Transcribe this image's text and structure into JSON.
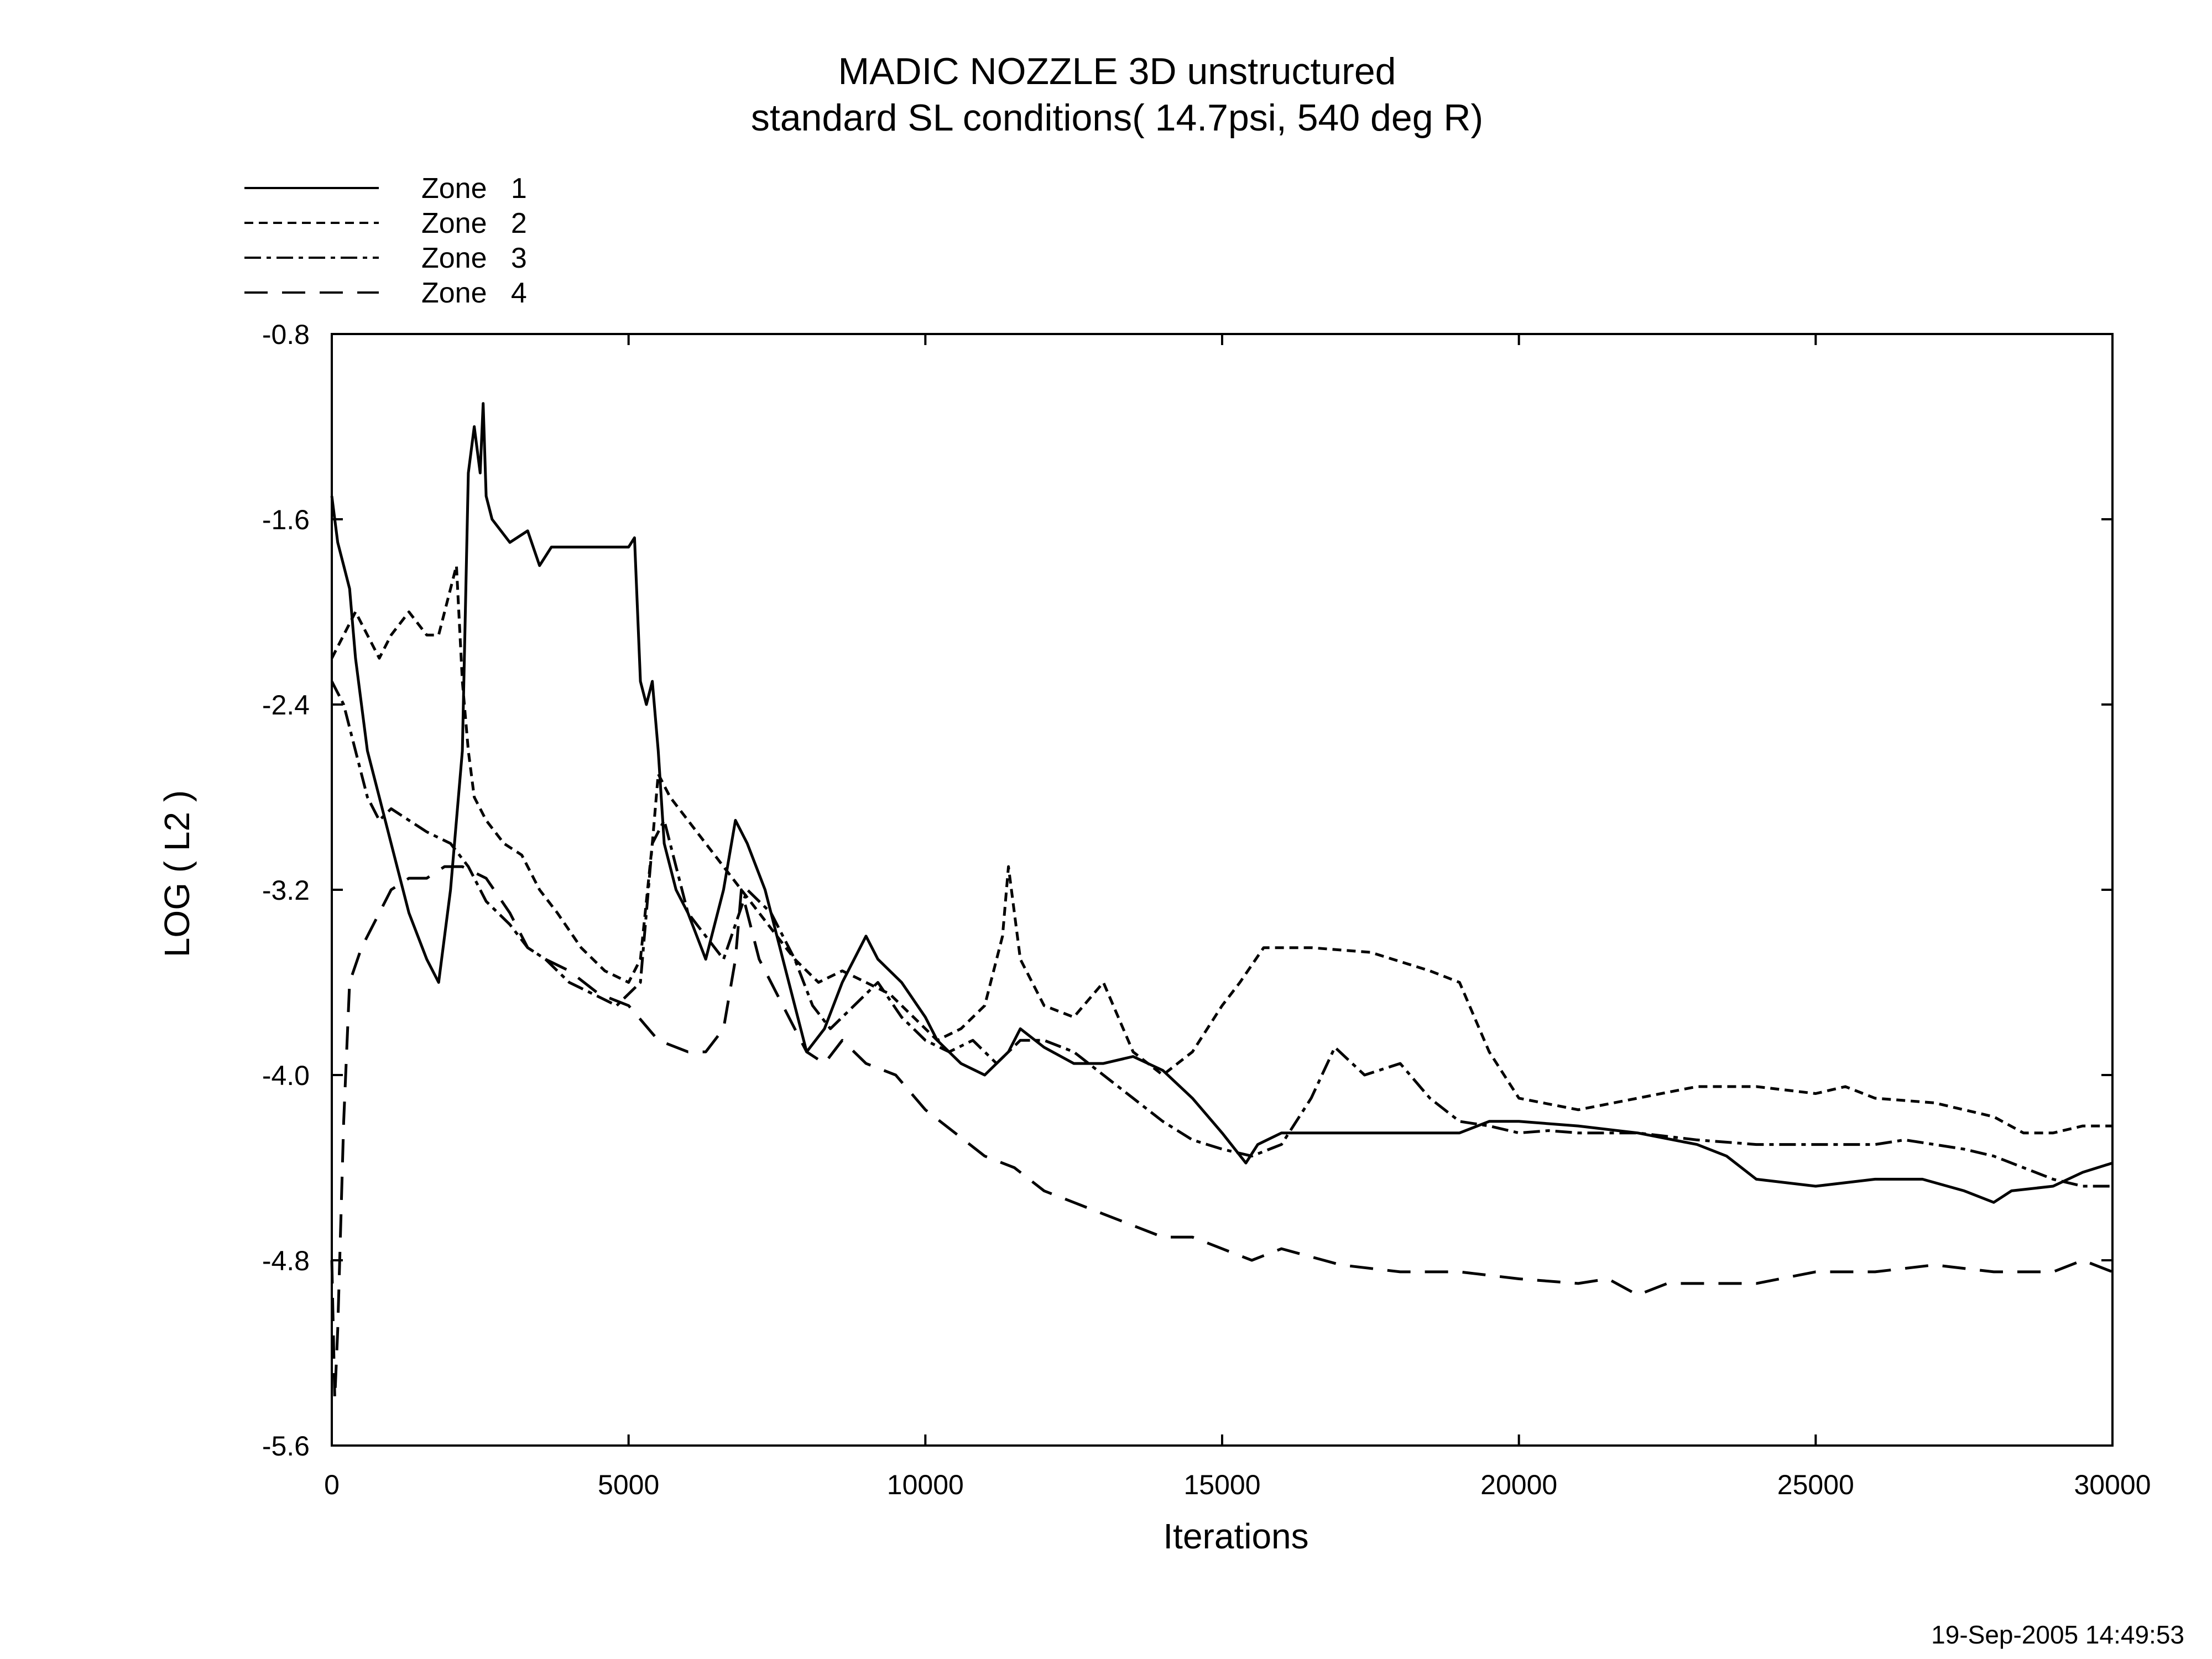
{
  "chart_data": {
    "type": "line",
    "title": "MADIC NOZZLE 3D unstructured",
    "subtitle": "standard SL conditions( 14.7psi, 540 deg R)",
    "xlabel": "Iterations",
    "ylabel": "LOG ( L2 )",
    "xlim": [
      0,
      30000
    ],
    "ylim": [
      -5.6,
      -0.8
    ],
    "xticks": [
      0,
      5000,
      10000,
      15000,
      20000,
      25000,
      30000
    ],
    "yticks": [
      -5.6,
      -4.8,
      -4.0,
      -3.2,
      -2.4,
      -1.6,
      -0.8
    ],
    "xtick_labels": [
      "0",
      "5000",
      "10000",
      "15000",
      "20000",
      "25000",
      "30000"
    ],
    "ytick_labels": [
      "-5.6",
      "-4.8",
      "-4.0",
      "-3.2",
      "-2.4",
      "-1.6",
      "-0.8"
    ],
    "grid": false,
    "legend_position": "top-left (outside plot)",
    "series": [
      {
        "name": "Zone   1",
        "dash": "solid",
        "x": [
          0,
          100,
          200,
          300,
          400,
          600,
          800,
          1000,
          1300,
          1600,
          1800,
          2000,
          2200,
          2300,
          2400,
          2500,
          2550,
          2600,
          2700,
          3000,
          3300,
          3500,
          3700,
          4000,
          4500,
          5000,
          5100,
          5200,
          5300,
          5400,
          5500,
          5600,
          5800,
          6000,
          6300,
          6600,
          6800,
          7000,
          7300,
          7600,
          8000,
          8300,
          8600,
          9000,
          9200,
          9600,
          10000,
          10200,
          10600,
          11000,
          11400,
          11600,
          12000,
          12500,
          13000,
          13500,
          14000,
          14500,
          15000,
          15400,
          15600,
          16000,
          17000,
          18000,
          19000,
          19500,
          20000,
          21000,
          22000,
          23000,
          23500,
          24000,
          25000,
          26000,
          26800,
          27500,
          28000,
          28300,
          29000,
          29500,
          30000
        ],
        "y": [
          -1.5,
          -1.7,
          -1.8,
          -1.9,
          -2.2,
          -2.6,
          -2.8,
          -3.0,
          -3.3,
          -3.5,
          -3.6,
          -3.2,
          -2.6,
          -1.4,
          -1.2,
          -1.4,
          -1.1,
          -1.5,
          -1.6,
          -1.7,
          -1.65,
          -1.8,
          -1.72,
          -1.72,
          -1.72,
          -1.72,
          -1.68,
          -2.3,
          -2.4,
          -2.3,
          -2.6,
          -3.0,
          -3.2,
          -3.3,
          -3.5,
          -3.2,
          -2.9,
          -3.0,
          -3.2,
          -3.5,
          -3.9,
          -3.8,
          -3.6,
          -3.4,
          -3.5,
          -3.6,
          -3.75,
          -3.85,
          -3.95,
          -4.0,
          -3.9,
          -3.8,
          -3.88,
          -3.95,
          -3.95,
          -3.92,
          -3.98,
          -4.1,
          -4.25,
          -4.38,
          -4.3,
          -4.25,
          -4.25,
          -4.25,
          -4.25,
          -4.2,
          -4.2,
          -4.22,
          -4.25,
          -4.3,
          -4.35,
          -4.45,
          -4.48,
          -4.45,
          -4.45,
          -4.5,
          -4.55,
          -4.5,
          -4.48,
          -4.42,
          -4.38
        ]
      },
      {
        "name": "Zone   2",
        "dash": "short-dash",
        "x": [
          0,
          200,
          400,
          600,
          800,
          1000,
          1300,
          1600,
          1800,
          2000,
          2100,
          2200,
          2300,
          2400,
          2600,
          2900,
          3200,
          3500,
          3800,
          4200,
          4600,
          5000,
          5200,
          5400,
          5500,
          5700,
          6000,
          6300,
          6600,
          6900,
          7200,
          7500,
          7800,
          8200,
          8600,
          9000,
          9400,
          9800,
          10200,
          10600,
          11000,
          11300,
          11400,
          11600,
          12000,
          12500,
          13000,
          13500,
          14000,
          14500,
          15000,
          15300,
          15700,
          16500,
          17500,
          18500,
          19000,
          19500,
          20000,
          21000,
          22000,
          23000,
          24000,
          25000,
          25500,
          26000,
          27000,
          28000,
          28500,
          29000,
          29500,
          30000
        ],
        "y": [
          -2.2,
          -2.1,
          -2.0,
          -2.1,
          -2.2,
          -2.1,
          -2.0,
          -2.1,
          -2.1,
          -1.9,
          -1.8,
          -2.3,
          -2.6,
          -2.8,
          -2.9,
          -3.0,
          -3.05,
          -3.2,
          -3.3,
          -3.45,
          -3.55,
          -3.6,
          -3.5,
          -3.0,
          -2.7,
          -2.8,
          -2.9,
          -3.0,
          -3.1,
          -3.2,
          -3.3,
          -3.4,
          -3.5,
          -3.6,
          -3.55,
          -3.6,
          -3.65,
          -3.75,
          -3.85,
          -3.8,
          -3.7,
          -3.4,
          -3.1,
          -3.5,
          -3.7,
          -3.75,
          -3.6,
          -3.9,
          -4.0,
          -3.9,
          -3.7,
          -3.6,
          -3.45,
          -3.45,
          -3.47,
          -3.55,
          -3.6,
          -3.9,
          -4.1,
          -4.15,
          -4.1,
          -4.05,
          -4.05,
          -4.08,
          -4.05,
          -4.1,
          -4.12,
          -4.18,
          -4.25,
          -4.25,
          -4.22,
          -4.22
        ]
      },
      {
        "name": "Zone   3",
        "dash": "dash-dot",
        "x": [
          0,
          200,
          400,
          600,
          800,
          1000,
          1300,
          1600,
          2000,
          2300,
          2600,
          3000,
          3300,
          3600,
          4000,
          4400,
          4800,
          5200,
          5400,
          5600,
          5800,
          6000,
          6300,
          6600,
          7000,
          7400,
          7800,
          8100,
          8400,
          8800,
          9200,
          9600,
          10000,
          10400,
          10800,
          11200,
          11600,
          12000,
          12500,
          13000,
          13500,
          14000,
          14500,
          15000,
          15500,
          16000,
          16500,
          16900,
          17400,
          18000,
          18500,
          19000,
          19500,
          20000,
          20500,
          21000,
          22000,
          23000,
          24000,
          25000,
          26000,
          26500,
          27000,
          27500,
          28000,
          28500,
          29000,
          29500,
          30000
        ],
        "y": [
          -2.3,
          -2.4,
          -2.6,
          -2.8,
          -2.9,
          -2.85,
          -2.9,
          -2.95,
          -3.0,
          -3.1,
          -3.25,
          -3.35,
          -3.45,
          -3.5,
          -3.6,
          -3.65,
          -3.7,
          -3.6,
          -3.0,
          -2.9,
          -3.1,
          -3.3,
          -3.4,
          -3.5,
          -3.2,
          -3.3,
          -3.5,
          -3.7,
          -3.8,
          -3.7,
          -3.6,
          -3.75,
          -3.85,
          -3.9,
          -3.85,
          -3.95,
          -3.85,
          -3.85,
          -3.9,
          -4.0,
          -4.1,
          -4.2,
          -4.28,
          -4.32,
          -4.35,
          -4.3,
          -4.1,
          -3.88,
          -4.0,
          -3.95,
          -4.1,
          -4.2,
          -4.22,
          -4.25,
          -4.24,
          -4.25,
          -4.25,
          -4.28,
          -4.3,
          -4.3,
          -4.3,
          -4.28,
          -4.3,
          -4.32,
          -4.35,
          -4.4,
          -4.45,
          -4.48,
          -4.48
        ]
      },
      {
        "name": "Zone   4",
        "dash": "long-dash",
        "x": [
          0,
          50,
          100,
          200,
          300,
          500,
          800,
          1000,
          1300,
          1600,
          1900,
          2200,
          2600,
          3000,
          3300,
          3600,
          4000,
          4500,
          5000,
          5500,
          6000,
          6300,
          6600,
          6800,
          6900,
          7200,
          7600,
          8000,
          8300,
          8600,
          9000,
          9500,
          10000,
          10500,
          11000,
          11500,
          12000,
          12500,
          13000,
          13500,
          14000,
          14500,
          15000,
          15500,
          16000,
          17000,
          18000,
          19000,
          20000,
          21000,
          21500,
          22000,
          22500,
          23000,
          24000,
          25000,
          26000,
          27000,
          28000,
          29000,
          29500,
          30000
        ],
        "y": [
          -4.8,
          -5.4,
          -5.1,
          -4.2,
          -3.6,
          -3.45,
          -3.3,
          -3.2,
          -3.15,
          -3.15,
          -3.1,
          -3.1,
          -3.15,
          -3.3,
          -3.45,
          -3.5,
          -3.55,
          -3.65,
          -3.7,
          -3.85,
          -3.9,
          -3.9,
          -3.8,
          -3.5,
          -3.2,
          -3.5,
          -3.7,
          -3.9,
          -3.95,
          -3.85,
          -3.95,
          -4.0,
          -4.15,
          -4.25,
          -4.35,
          -4.4,
          -4.5,
          -4.55,
          -4.6,
          -4.65,
          -4.7,
          -4.7,
          -4.75,
          -4.8,
          -4.75,
          -4.82,
          -4.85,
          -4.85,
          -4.88,
          -4.9,
          -4.88,
          -4.95,
          -4.9,
          -4.9,
          -4.9,
          -4.85,
          -4.85,
          -4.82,
          -4.85,
          -4.85,
          -4.8,
          -4.85
        ]
      }
    ],
    "annotations": [
      "19-Sep-2005 14:49:53"
    ]
  }
}
